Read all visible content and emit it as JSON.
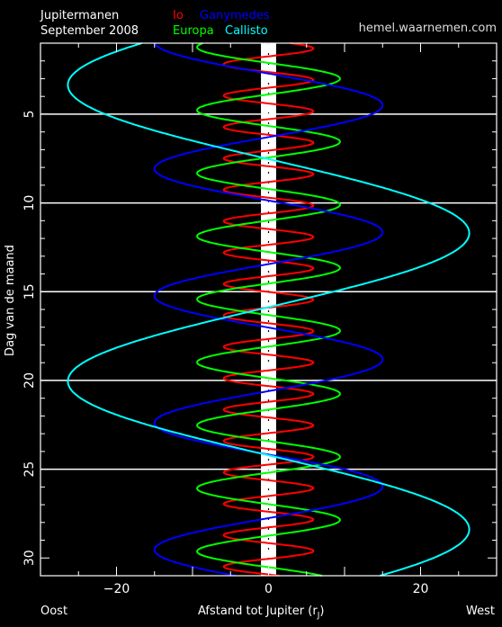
{
  "header": {
    "title": "Jupitermanen",
    "subtitle": "September 2008",
    "credit": "hemel.waarnemen.com"
  },
  "bottom": {
    "left": "Oost",
    "right": "West",
    "xlabel": "Afstand tot Jupiter (r",
    "xlabel_sub": "J",
    "xlabel_end": ")"
  },
  "chart_data": {
    "type": "line",
    "title": "Jupitermanen",
    "subtitle": "September 2008",
    "xlabel": "Afstand tot Jupiter (rJ)",
    "ylabel": "Dag van de maand",
    "xlim": [
      -30,
      30
    ],
    "ylim": [
      1,
      31
    ],
    "y_inverted": true,
    "xticks": [
      -20,
      0,
      20
    ],
    "yticks": [
      5,
      10,
      15,
      20,
      25,
      30
    ],
    "horizontal_gridlines": [
      5,
      10,
      15,
      20,
      25
    ],
    "colors": {
      "Io": "#ff0000",
      "Europa": "#00ff00",
      "Ganymedes": "#0000ff",
      "Callisto": "#00ffff"
    },
    "series": [
      {
        "name": "Io",
        "amplitude": 5.9,
        "period_days": 1.769,
        "phase_day": 1.3
      },
      {
        "name": "Europa",
        "amplitude": 9.4,
        "period_days": 3.551,
        "phase_day": 3.0
      },
      {
        "name": "Ganymedes",
        "amplitude": 15.0,
        "period_days": 7.155,
        "phase_day": 4.5
      },
      {
        "name": "Callisto",
        "amplitude": 26.4,
        "period_days": 16.689,
        "phase_day": 11.7
      }
    ],
    "legend_placement": "top"
  }
}
